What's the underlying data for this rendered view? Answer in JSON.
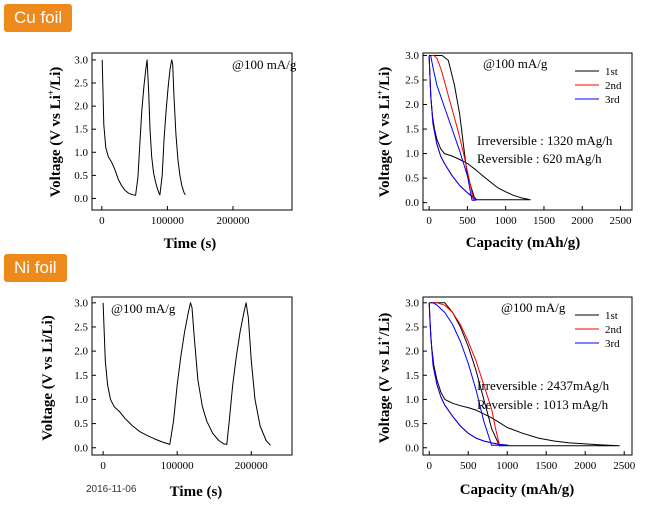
{
  "labels": {
    "cu_foil": "Cu foil",
    "ni_foil": "Ni foil",
    "date_stamp": "2016-11-06"
  },
  "chart_data": [
    {
      "id": "cu-time",
      "type": "line",
      "xlabel": "Time (s)",
      "ylabel": "Voltage (V vs Li+/Li)",
      "xlim": [
        -15000,
        290000
      ],
      "ylim": [
        -0.25,
        3.15
      ],
      "xticks": [
        0,
        100000,
        200000
      ],
      "yticks": [
        0.0,
        0.5,
        1.0,
        1.5,
        2.0,
        2.5,
        3.0
      ],
      "annotations": [
        "@100 mA/g"
      ],
      "series": [
        {
          "color": "#000000",
          "x": [
            500,
            3000,
            6000,
            10000,
            15000,
            20000,
            25000,
            30000,
            35000,
            40000,
            45000,
            50000,
            51500,
            55000,
            58000,
            61000,
            64000,
            67000,
            69000,
            71500,
            73500,
            76000,
            79000,
            82000,
            85000,
            87500,
            88500,
            92000,
            95000,
            98000,
            101000,
            104000,
            106500,
            108000,
            110000,
            113000,
            116000,
            119000,
            122000,
            125500,
            127500
          ],
          "y": [
            3.0,
            1.6,
            1.1,
            0.9,
            0.78,
            0.62,
            0.42,
            0.28,
            0.18,
            0.12,
            0.09,
            0.07,
            0.07,
            0.45,
            1.2,
            1.9,
            2.4,
            2.8,
            3.0,
            2.3,
            1.5,
            0.9,
            0.55,
            0.35,
            0.2,
            0.1,
            0.08,
            0.5,
            1.3,
            1.9,
            2.4,
            2.8,
            3.0,
            2.9,
            2.2,
            1.4,
            0.85,
            0.5,
            0.28,
            0.12,
            0.08
          ]
        }
      ]
    },
    {
      "id": "cu-capacity",
      "type": "line",
      "xlabel": "Capacity (mAh/g)",
      "ylabel": "Voltage (V vs Li+/Li)",
      "xlim": [
        -80,
        2650
      ],
      "ylim": [
        -0.15,
        3.05
      ],
      "xticks": [
        0,
        500,
        1000,
        1500,
        2000,
        2500
      ],
      "yticks": [
        0.0,
        0.5,
        1.0,
        1.5,
        2.0,
        2.5,
        3.0
      ],
      "annotations": [
        "@100 mA/g",
        "Irreversible : 1320 mAg/h",
        "Reversible : 620 mAg/h"
      ],
      "series": [
        {
          "name": "1st",
          "color": "#000000",
          "x": [
            0,
            10,
            25,
            45,
            70,
            100,
            150,
            200,
            300,
            400,
            500,
            600,
            700,
            800,
            900,
            1000,
            1100,
            1200,
            1320,
            1320,
            1250,
            1150,
            1000,
            850,
            700,
            600,
            500,
            450,
            400,
            330,
            250,
            170,
            100,
            40,
            0
          ],
          "y": [
            3.0,
            2.6,
            2.1,
            1.75,
            1.5,
            1.3,
            1.1,
            1.0,
            0.95,
            0.88,
            0.8,
            0.68,
            0.55,
            0.42,
            0.3,
            0.22,
            0.15,
            0.1,
            0.06,
            0.06,
            0.06,
            0.06,
            0.06,
            0.06,
            0.06,
            0.06,
            0.55,
            1.15,
            1.8,
            2.4,
            2.9,
            3.0,
            3.0,
            3.0,
            3.0
          ]
        },
        {
          "name": "2nd",
          "color": "#ff0000",
          "x": [
            0,
            20,
            50,
            100,
            150,
            200,
            300,
            400,
            500,
            600,
            620,
            580,
            520,
            450,
            380,
            300,
            230,
            160,
            100,
            60,
            30
          ],
          "y": [
            3.0,
            2.2,
            1.6,
            1.2,
            0.95,
            0.8,
            0.55,
            0.35,
            0.2,
            0.1,
            0.06,
            0.05,
            0.5,
            1.0,
            1.45,
            1.9,
            2.3,
            2.7,
            2.95,
            3.0,
            3.0
          ]
        },
        {
          "name": "3rd",
          "color": "#0000ff",
          "x": [
            0,
            20,
            50,
            100,
            150,
            200,
            300,
            400,
            500,
            560,
            600,
            620,
            600,
            560,
            500,
            400,
            300,
            200,
            100,
            50,
            20
          ],
          "y": [
            3.0,
            2.2,
            1.6,
            1.2,
            0.95,
            0.8,
            0.55,
            0.35,
            0.2,
            0.12,
            0.08,
            0.06,
            0.05,
            0.05,
            0.55,
            1.05,
            1.5,
            1.95,
            2.4,
            2.75,
            3.0
          ]
        }
      ]
    },
    {
      "id": "ni-time",
      "type": "line",
      "xlabel": "Time (s)",
      "ylabel": "Voltage (V vs Li+/Li)",
      "xlim": [
        -15000,
        255000
      ],
      "ylim": [
        -0.15,
        3.12
      ],
      "xticks": [
        0,
        100000,
        200000
      ],
      "yticks": [
        0.0,
        0.5,
        1.0,
        1.5,
        2.0,
        2.5,
        3.0
      ],
      "annotations": [
        "@100 mA/g"
      ],
      "series": [
        {
          "color": "#000000",
          "x": [
            0,
            3000,
            6000,
            10000,
            15000,
            22000,
            30000,
            40000,
            50000,
            60000,
            70000,
            80000,
            88000,
            90000,
            95000,
            100000,
            105000,
            110000,
            115000,
            118000,
            120000,
            123000,
            128000,
            134000,
            140000,
            148000,
            156000,
            163000,
            167000,
            170000,
            175000,
            180000,
            185000,
            190000,
            193000,
            196000,
            200000,
            205000,
            212000,
            220000,
            226000
          ],
          "y": [
            3.0,
            1.8,
            1.3,
            1.0,
            0.85,
            0.75,
            0.6,
            0.45,
            0.33,
            0.25,
            0.18,
            0.12,
            0.08,
            0.07,
            0.55,
            1.3,
            1.9,
            2.4,
            2.8,
            3.0,
            2.9,
            2.3,
            1.4,
            0.85,
            0.55,
            0.3,
            0.15,
            0.08,
            0.07,
            0.5,
            1.3,
            1.9,
            2.4,
            2.8,
            3.0,
            2.7,
            1.8,
            1.0,
            0.45,
            0.15,
            0.05
          ]
        }
      ]
    },
    {
      "id": "ni-capacity",
      "type": "line",
      "xlabel": "Capacity (mAh/g)",
      "ylabel": "Voltage (V vs Li+/Li)",
      "xlim": [
        -80,
        2600
      ],
      "ylim": [
        -0.15,
        3.12
      ],
      "xticks": [
        0,
        500,
        1000,
        1500,
        2000,
        2500
      ],
      "yticks": [
        0.0,
        0.5,
        1.0,
        1.5,
        2.0,
        2.5,
        3.0
      ],
      "annotations": [
        "@100 mA/g",
        "Irreversible : 2437mAg/h",
        "Reversible : 1013 mAg/h"
      ],
      "series": [
        {
          "name": "1st",
          "color": "#000000",
          "x": [
            0,
            10,
            30,
            60,
            100,
            150,
            200,
            300,
            400,
            500,
            600,
            700,
            800,
            900,
            1000,
            1200,
            1400,
            1600,
            1800,
            2000,
            2200,
            2437,
            2437,
            2200,
            1800,
            1400,
            1000,
            900,
            800,
            700,
            600,
            500,
            400,
            300,
            200,
            100,
            0
          ],
          "y": [
            3.0,
            2.6,
            2.1,
            1.7,
            1.4,
            1.15,
            1.0,
            0.92,
            0.87,
            0.83,
            0.78,
            0.7,
            0.62,
            0.52,
            0.42,
            0.3,
            0.2,
            0.14,
            0.1,
            0.08,
            0.06,
            0.04,
            0.04,
            0.04,
            0.04,
            0.04,
            0.04,
            0.04,
            0.4,
            1.0,
            1.6,
            2.1,
            2.5,
            2.8,
            3.0,
            3.0,
            3.0
          ]
        },
        {
          "name": "2nd",
          "color": "#ff0000",
          "x": [
            0,
            20,
            50,
            100,
            150,
            200,
            300,
            400,
            500,
            600,
            700,
            800,
            900,
            1000,
            1013,
            950,
            900,
            850,
            800,
            700,
            600,
            500,
            400,
            300,
            200,
            100,
            50,
            20
          ],
          "y": [
            3.0,
            2.3,
            1.7,
            1.3,
            1.05,
            0.88,
            0.65,
            0.45,
            0.3,
            0.2,
            0.14,
            0.1,
            0.07,
            0.05,
            0.05,
            0.05,
            0.06,
            0.4,
            0.8,
            1.3,
            1.8,
            2.2,
            2.55,
            2.8,
            2.95,
            3.0,
            3.0,
            3.0
          ]
        },
        {
          "name": "3rd",
          "color": "#0000ff",
          "x": [
            0,
            20,
            50,
            100,
            150,
            200,
            300,
            400,
            500,
            600,
            700,
            800,
            900,
            980,
            1013,
            980,
            900,
            800,
            700,
            600,
            500,
            400,
            300,
            200,
            100,
            50,
            20
          ],
          "y": [
            3.0,
            2.3,
            1.7,
            1.3,
            1.05,
            0.88,
            0.65,
            0.45,
            0.3,
            0.2,
            0.14,
            0.1,
            0.07,
            0.06,
            0.05,
            0.05,
            0.05,
            0.05,
            0.55,
            1.2,
            1.75,
            2.2,
            2.55,
            2.8,
            2.95,
            3.0,
            3.0
          ]
        }
      ]
    }
  ]
}
